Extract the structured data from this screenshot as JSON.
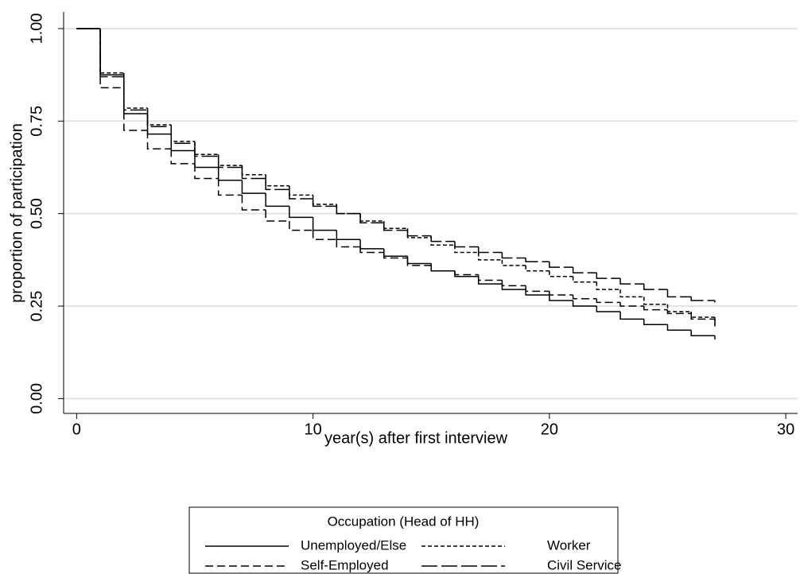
{
  "chart_data": {
    "type": "step",
    "x_label": "year(s) after first interview",
    "y_label": "proportion of participation",
    "xlim": [
      -0.55,
      30.5
    ],
    "ylim": [
      -0.04,
      1.045
    ],
    "xticks": [
      0,
      10,
      20,
      30
    ],
    "yticks": [
      {
        "value": 0,
        "label": "0.00"
      },
      {
        "value": 0.25,
        "label": "0.25"
      },
      {
        "value": 0.5,
        "label": "0.50"
      },
      {
        "value": 0.75,
        "label": "0.75"
      },
      {
        "value": 1,
        "label": "1.00"
      }
    ],
    "grid": true,
    "legend_title": "Occupation (Head of HH)",
    "legend_position": "bottom",
    "x": [
      0,
      1,
      2,
      3,
      4,
      5,
      6,
      7,
      8,
      9,
      10,
      11,
      12,
      13,
      14,
      15,
      16,
      17,
      18,
      19,
      20,
      21,
      22,
      23,
      24,
      25,
      26,
      27
    ],
    "series": [
      {
        "name": "Unemployed/Else",
        "color": "#000000",
        "dash": "solid",
        "values": [
          1,
          0.875,
          0.77,
          0.715,
          0.67,
          0.625,
          0.59,
          0.555,
          0.52,
          0.49,
          0.455,
          0.43,
          0.405,
          0.385,
          0.365,
          0.345,
          0.33,
          0.31,
          0.295,
          0.28,
          0.265,
          0.25,
          0.235,
          0.215,
          0.2,
          0.185,
          0.17,
          0.16
        ]
      },
      {
        "name": "Worker",
        "color": "#000000",
        "dash": "short-dash",
        "values": [
          1,
          0.88,
          0.785,
          0.74,
          0.695,
          0.66,
          0.63,
          0.605,
          0.575,
          0.55,
          0.525,
          0.5,
          0.48,
          0.46,
          0.435,
          0.415,
          0.395,
          0.375,
          0.36,
          0.345,
          0.33,
          0.315,
          0.295,
          0.275,
          0.255,
          0.235,
          0.22,
          0.2
        ]
      },
      {
        "name": "Self-Employed",
        "color": "#000000",
        "dash": "dash",
        "values": [
          1,
          0.84,
          0.725,
          0.675,
          0.635,
          0.595,
          0.55,
          0.51,
          0.48,
          0.455,
          0.43,
          0.41,
          0.395,
          0.38,
          0.36,
          0.345,
          0.335,
          0.32,
          0.305,
          0.29,
          0.28,
          0.27,
          0.26,
          0.25,
          0.24,
          0.23,
          0.215,
          0.195
        ]
      },
      {
        "name": "Civil Service",
        "color": "#000000",
        "dash": "long-dash",
        "values": [
          1,
          0.87,
          0.78,
          0.735,
          0.69,
          0.655,
          0.625,
          0.595,
          0.565,
          0.54,
          0.52,
          0.5,
          0.475,
          0.455,
          0.44,
          0.425,
          0.41,
          0.395,
          0.38,
          0.37,
          0.355,
          0.34,
          0.325,
          0.31,
          0.295,
          0.275,
          0.265,
          0.26
        ]
      }
    ]
  }
}
